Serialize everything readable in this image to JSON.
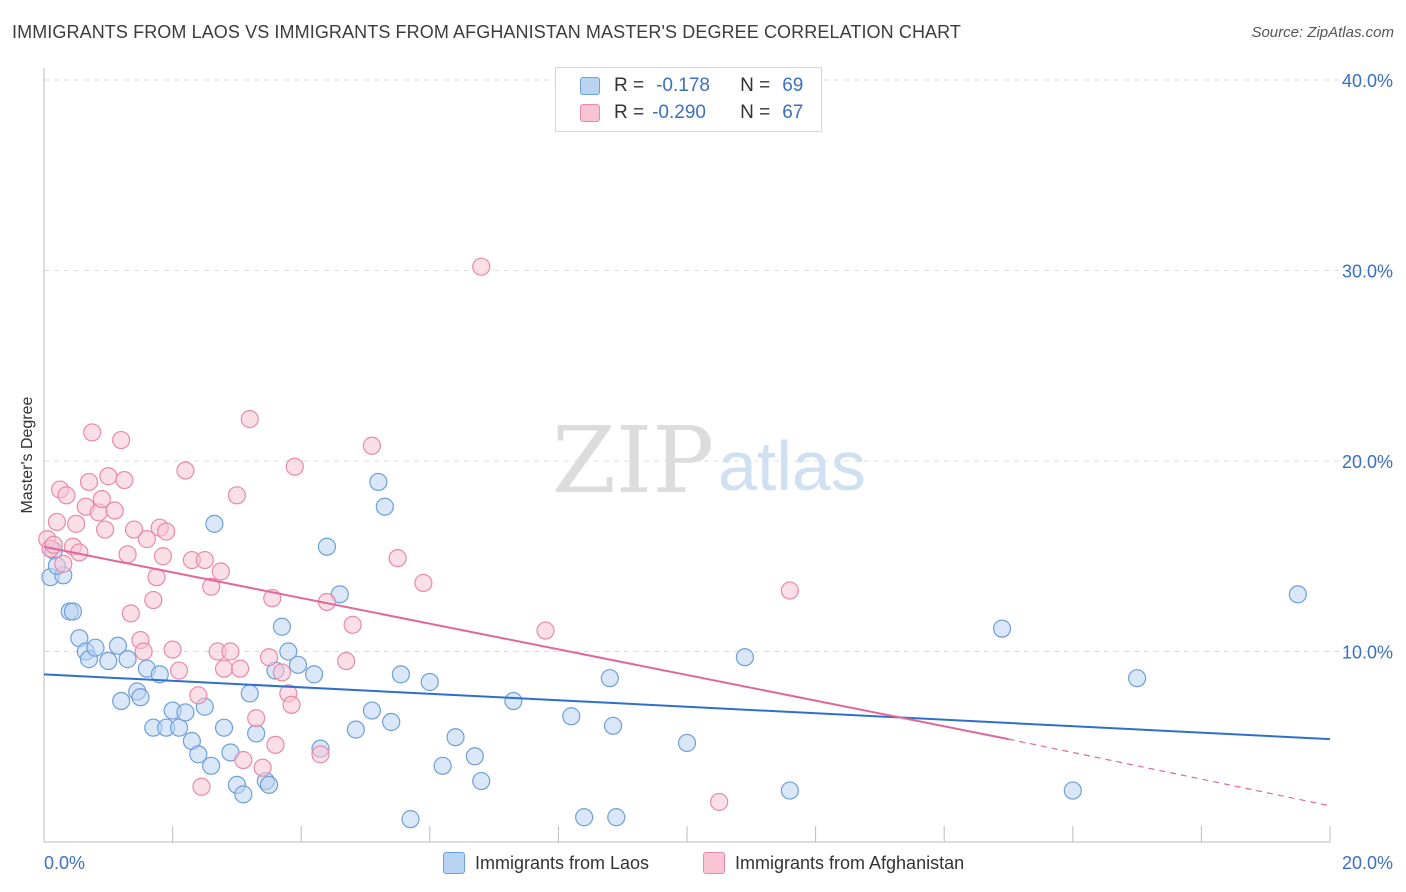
{
  "title": "IMMIGRANTS FROM LAOS VS IMMIGRANTS FROM AFGHANISTAN MASTER'S DEGREE CORRELATION CHART",
  "source": "Source: ZipAtlas.com",
  "watermark": {
    "zip": "ZIP",
    "atlas": "atlas"
  },
  "legend": {
    "rows": [
      {
        "r_label": "R =",
        "r_value": "-0.178",
        "n_label": "N =",
        "n_value": "69"
      },
      {
        "r_label": "R =",
        "r_value": "-0.290",
        "n_label": "N =",
        "n_value": "67"
      }
    ]
  },
  "bottom_legend": [
    "Immigrants from Laos",
    "Immigrants from Afghanistan"
  ],
  "colors": {
    "laos_fill": "#b9d3f2",
    "laos_stroke": "#6f9fd8",
    "laos_line": "#2f6fcc",
    "afg_fill": "#f8c4d4",
    "afg_stroke": "#e88aa8",
    "afg_line": "#e0679a",
    "tick_text": "#3a6fc4",
    "grid": "#dddddd"
  },
  "chart_data": {
    "type": "scatter",
    "title": "IMMIGRANTS FROM LAOS VS IMMIGRANTS FROM AFGHANISTAN MASTER'S DEGREE CORRELATION CHART",
    "xlabel": "",
    "ylabel": "Master's Degree",
    "xlim": [
      0,
      20
    ],
    "ylim": [
      0,
      40
    ],
    "x_tick_labels": [
      "0.0%",
      "20.0%"
    ],
    "y_ticks": [
      10,
      20,
      30,
      40
    ],
    "y_tick_labels": [
      "10.0%",
      "20.0%",
      "30.0%",
      "40.0%"
    ],
    "grid": true,
    "legend_position": "top-center",
    "series": [
      {
        "name": "Immigrants from Laos",
        "points": [
          [
            0.1,
            13.9
          ],
          [
            0.3,
            14.0
          ],
          [
            0.4,
            12.1
          ],
          [
            0.45,
            12.1
          ],
          [
            0.55,
            10.7
          ],
          [
            0.65,
            10.0
          ],
          [
            0.7,
            9.6
          ],
          [
            0.8,
            10.2
          ],
          [
            1.0,
            9.5
          ],
          [
            1.15,
            10.3
          ],
          [
            1.2,
            7.4
          ],
          [
            1.3,
            9.6
          ],
          [
            1.45,
            7.9
          ],
          [
            1.5,
            7.6
          ],
          [
            1.6,
            9.1
          ],
          [
            1.7,
            6.0
          ],
          [
            1.8,
            8.8
          ],
          [
            1.9,
            6.0
          ],
          [
            2.0,
            6.9
          ],
          [
            2.1,
            6.0
          ],
          [
            2.2,
            6.8
          ],
          [
            2.3,
            5.3
          ],
          [
            2.4,
            4.6
          ],
          [
            2.5,
            7.1
          ],
          [
            2.6,
            4.0
          ],
          [
            2.65,
            16.7
          ],
          [
            2.8,
            6.0
          ],
          [
            2.9,
            4.7
          ],
          [
            3.0,
            3.0
          ],
          [
            3.1,
            2.5
          ],
          [
            3.2,
            7.8
          ],
          [
            3.3,
            5.7
          ],
          [
            3.45,
            3.2
          ],
          [
            3.5,
            3.0
          ],
          [
            3.6,
            9.0
          ],
          [
            3.7,
            11.3
          ],
          [
            3.8,
            10.0
          ],
          [
            3.95,
            9.3
          ],
          [
            4.2,
            8.8
          ],
          [
            4.3,
            4.9
          ],
          [
            4.4,
            15.5
          ],
          [
            4.6,
            13.0
          ],
          [
            4.85,
            5.9
          ],
          [
            5.1,
            6.9
          ],
          [
            5.2,
            18.9
          ],
          [
            5.3,
            17.6
          ],
          [
            5.4,
            6.3
          ],
          [
            5.55,
            8.8
          ],
          [
            5.7,
            1.2
          ],
          [
            6.0,
            8.4
          ],
          [
            6.2,
            4.0
          ],
          [
            6.4,
            5.5
          ],
          [
            6.7,
            4.5
          ],
          [
            6.8,
            3.2
          ],
          [
            7.3,
            7.4
          ],
          [
            8.2,
            6.6
          ],
          [
            8.4,
            1.3
          ],
          [
            8.8,
            8.6
          ],
          [
            8.85,
            6.1
          ],
          [
            8.9,
            1.3
          ],
          [
            10.0,
            5.2
          ],
          [
            10.9,
            9.7
          ],
          [
            11.6,
            2.7
          ],
          [
            14.9,
            11.2
          ],
          [
            16.0,
            2.7
          ],
          [
            17.0,
            8.6
          ],
          [
            19.5,
            13.0
          ],
          [
            0.15,
            15.3
          ],
          [
            0.2,
            14.5
          ]
        ],
        "trend": {
          "x": [
            0,
            20
          ],
          "y": [
            8.8,
            5.4
          ]
        }
      },
      {
        "name": "Immigrants from Afghanistan",
        "points": [
          [
            0.05,
            15.9
          ],
          [
            0.1,
            15.4
          ],
          [
            0.15,
            15.6
          ],
          [
            0.2,
            16.8
          ],
          [
            0.25,
            18.5
          ],
          [
            0.3,
            14.6
          ],
          [
            0.35,
            18.2
          ],
          [
            0.45,
            15.5
          ],
          [
            0.5,
            16.7
          ],
          [
            0.55,
            15.2
          ],
          [
            0.65,
            17.6
          ],
          [
            0.7,
            18.9
          ],
          [
            0.75,
            21.5
          ],
          [
            0.85,
            17.3
          ],
          [
            0.9,
            18.0
          ],
          [
            0.95,
            16.4
          ],
          [
            1.0,
            19.2
          ],
          [
            1.1,
            17.4
          ],
          [
            1.2,
            21.1
          ],
          [
            1.25,
            19.0
          ],
          [
            1.3,
            15.1
          ],
          [
            1.35,
            12.0
          ],
          [
            1.4,
            16.4
          ],
          [
            1.5,
            10.6
          ],
          [
            1.6,
            15.9
          ],
          [
            1.7,
            12.7
          ],
          [
            1.75,
            13.9
          ],
          [
            1.8,
            16.5
          ],
          [
            1.85,
            15.0
          ],
          [
            1.9,
            16.3
          ],
          [
            2.0,
            10.1
          ],
          [
            2.1,
            9.0
          ],
          [
            2.2,
            19.5
          ],
          [
            2.3,
            14.8
          ],
          [
            2.4,
            7.7
          ],
          [
            2.5,
            14.8
          ],
          [
            2.6,
            13.4
          ],
          [
            2.7,
            10.0
          ],
          [
            2.75,
            14.2
          ],
          [
            2.8,
            9.1
          ],
          [
            2.9,
            10.0
          ],
          [
            3.0,
            18.2
          ],
          [
            3.05,
            9.1
          ],
          [
            3.1,
            4.3
          ],
          [
            3.2,
            22.2
          ],
          [
            3.3,
            6.5
          ],
          [
            3.4,
            3.9
          ],
          [
            3.5,
            9.7
          ],
          [
            3.55,
            12.8
          ],
          [
            3.6,
            5.1
          ],
          [
            3.7,
            8.9
          ],
          [
            3.8,
            7.8
          ],
          [
            3.85,
            7.2
          ],
          [
            3.9,
            19.7
          ],
          [
            4.3,
            4.6
          ],
          [
            4.4,
            12.6
          ],
          [
            4.7,
            9.5
          ],
          [
            4.8,
            11.4
          ],
          [
            5.1,
            20.8
          ],
          [
            5.5,
            14.9
          ],
          [
            5.9,
            13.6
          ],
          [
            6.8,
            30.2
          ],
          [
            7.8,
            11.1
          ],
          [
            10.5,
            2.1
          ],
          [
            11.6,
            13.2
          ],
          [
            2.45,
            2.9
          ],
          [
            1.55,
            10.0
          ]
        ],
        "trend": {
          "x": [
            0,
            15
          ],
          "y": [
            15.5,
            5.4
          ]
        },
        "trend_dashed": {
          "x": [
            15,
            20
          ],
          "y": [
            5.4,
            1.9
          ]
        }
      }
    ]
  }
}
